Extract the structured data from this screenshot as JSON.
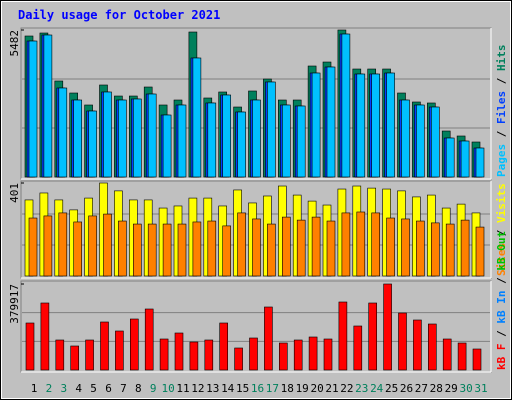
{
  "chart_data": {
    "type": "bar",
    "title": "Daily usage for October 2021",
    "legend_separator": " / ",
    "categories": [
      "1",
      "2",
      "3",
      "4",
      "5",
      "6",
      "7",
      "8",
      "9",
      "10",
      "11",
      "12",
      "13",
      "14",
      "15",
      "16",
      "17",
      "18",
      "19",
      "20",
      "21",
      "22",
      "23",
      "24",
      "25",
      "26",
      "27",
      "28",
      "29",
      "30",
      "31"
    ],
    "category_colors": [
      "#000000",
      "#00805c",
      "#00805c",
      "#000000",
      "#000000",
      "#000000",
      "#000000",
      "#000000",
      "#00805c",
      "#00805c",
      "#000000",
      "#000000",
      "#000000",
      "#000000",
      "#000000",
      "#00805c",
      "#00805c",
      "#000000",
      "#000000",
      "#000000",
      "#000000",
      "#000000",
      "#00805c",
      "#00805c",
      "#000000",
      "#000000",
      "#000000",
      "#000000",
      "#000000",
      "#00805c",
      "#00805c"
    ],
    "panels": [
      {
        "ylim": [
          0,
          5482
        ],
        "yticks": [
          5482
        ],
        "grid_divisions": 3,
        "series": [
          {
            "name": "Pages",
            "color": "#00c0ff",
            "values": [
              5071,
              5295,
              3319,
              2871,
              2461,
              3170,
              2871,
              2909,
              3095,
              2312,
              2685,
              4438,
              2760,
              3058,
              2424,
              2871,
              3543,
              2685,
              2648,
              3878,
              4102,
              5332,
              3841,
              3841,
              3878,
              2871,
              2685,
              2610,
              1454,
              1342,
              1081
            ]
          },
          {
            "name": "Files",
            "color": "#0040ff",
            "values": [
              5071,
              5295,
              3319,
              2871,
              2461,
              3170,
              2871,
              2909,
              3095,
              2312,
              2685,
              4438,
              2760,
              3058,
              2424,
              2871,
              3543,
              2685,
              2648,
              3878,
              4102,
              5332,
              3841,
              3841,
              3878,
              2871,
              2685,
              2610,
              1454,
              1342,
              1081
            ]
          },
          {
            "name": "Hits",
            "color": "#00805c",
            "values": [
              5258,
              5370,
              3580,
              3132,
              2685,
              3431,
              3020,
              3020,
              3356,
              2685,
              2871,
              5407,
              2946,
              3170,
              2610,
              3207,
              3654,
              2871,
              2871,
              4139,
              4288,
              5482,
              4027,
              4027,
              4027,
              3132,
              2797,
              2760,
              1715,
              1529,
              1305
            ]
          }
        ],
        "legend_only": []
      },
      {
        "ylim": [
          0,
          401
        ],
        "yticks": [
          401
        ],
        "grid_divisions": 3,
        "series": [
          {
            "name": "Sites",
            "color": "#ff8000",
            "values": [
              250,
              259,
              272,
              233,
              259,
              267,
              237,
              224,
              224,
              224,
              224,
              233,
              237,
              216,
              272,
              246,
              224,
              254,
              241,
              254,
              237,
              272,
              276,
              272,
              250,
              246,
              237,
              229,
              224,
              241,
              211
            ]
          },
          {
            "name": "Visits",
            "color": "#ffff00",
            "values": [
              328,
              358,
              328,
              285,
              336,
              401,
              367,
              328,
              328,
              293,
              302,
              336,
              336,
              302,
              371,
              315,
              345,
              388,
              349,
              323,
              306,
              375,
              388,
              379,
              375,
              367,
              341,
              349,
              293,
              310,
              272
            ]
          }
        ],
        "legend_only": []
      },
      {
        "ylim": [
          0,
          379917
        ],
        "yticks": [
          379917
        ],
        "grid_divisions": 3,
        "series": [
          {
            "name": "kB F",
            "color": "#ff0000",
            "values": [
              207630,
              295980,
              132530,
              106020,
              132530,
              212050,
              172290,
              225300,
              269470,
              136950,
              163450,
              123690,
              132530,
              207630,
              97190,
              141360,
              278310,
              119280,
              132530,
              145780,
              136950,
              300400,
              194380,
              295980,
              379917,
              251800,
              220880,
              203210,
              136950,
              119280,
              92770
            ]
          }
        ],
        "legend_only": [
          {
            "name": "kB In",
            "color": "#0080ff"
          },
          {
            "name": "kB Out",
            "color": "#00c000"
          }
        ]
      }
    ]
  }
}
